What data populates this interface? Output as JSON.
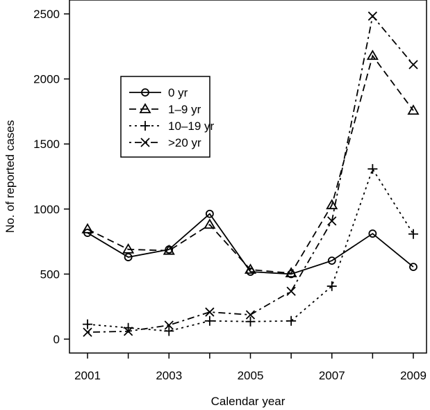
{
  "chart_data": {
    "type": "line",
    "title": "",
    "xlabel": "Calendar year",
    "ylabel": "No. of reported cases",
    "x": [
      2001,
      2002,
      2003,
      2004,
      2005,
      2006,
      2007,
      2008,
      2009
    ],
    "xticks": [
      "2001",
      "2003",
      "2005",
      "2007",
      "2009"
    ],
    "yticks": [
      "0",
      "500",
      "1000",
      "1500",
      "2000",
      "2500"
    ],
    "ylim": [
      0,
      2500
    ],
    "xlim": [
      2001,
      2009
    ],
    "grid": false,
    "legend_position": "upper-left-inside",
    "series": [
      {
        "name": "0 yr",
        "marker": "circle",
        "line": "solid",
        "values": [
          817,
          630,
          689,
          963,
          518,
          500,
          603,
          811,
          555
        ]
      },
      {
        "name": "1–9 yr",
        "marker": "triangle",
        "line": "dashed",
        "values": [
          845,
          690,
          680,
          880,
          534,
          507,
          1030,
          2178,
          1757
        ]
      },
      {
        "name": "10–19 yr",
        "marker": "plus",
        "line": "dotted",
        "values": [
          114,
          87,
          62,
          140,
          135,
          140,
          407,
          1308,
          808
        ]
      },
      {
        "name": ">20 yr",
        "marker": "cross",
        "line": "dotdash",
        "values": [
          53,
          60,
          107,
          208,
          187,
          368,
          908,
          2483,
          2110
        ]
      }
    ]
  }
}
